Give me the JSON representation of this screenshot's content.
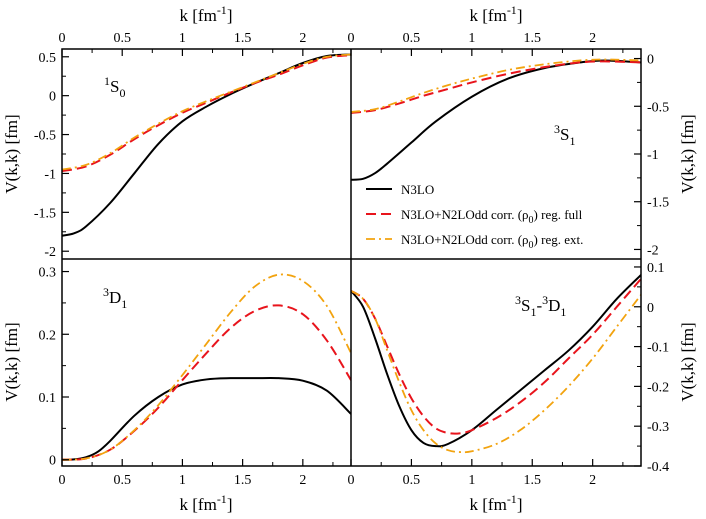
{
  "chart_data": {
    "type": "line",
    "x_axis": {
      "label": "k [fm",
      "label_sup": "-1",
      "label_close": "]",
      "ticks": [
        0,
        0.5,
        1,
        1.5,
        2
      ],
      "xlim": [
        0,
        2.4
      ]
    },
    "y_axis_label": "V(k,k) [fm]",
    "legend": {
      "placement": "right-center",
      "entries": [
        {
          "id": "n3lo",
          "text": "N3LO"
        },
        {
          "id": "full",
          "text": "N3LO+N2LOdd corr. (ρ",
          "sub": "0",
          "tail": ") reg. full"
        },
        {
          "id": "ext",
          "text": "N3LO+N2LOdd corr. (ρ",
          "sub": "0",
          "tail": ") reg. ext."
        }
      ]
    },
    "colors": {
      "n3lo": "#000000",
      "full": "#e8141c",
      "ext": "#f2a30f"
    },
    "panels": [
      {
        "id": "1S0",
        "position": "top-left",
        "label": {
          "pre": "1",
          "main": "S",
          "sub": "0",
          "sep": "",
          "pre2": "",
          "main2": "",
          "sub2": ""
        },
        "ylim": [
          -2.1,
          0.6
        ],
        "yticks": [
          0.5,
          0,
          -0.5,
          -1,
          -1.5,
          -2
        ],
        "series": [
          {
            "name": "N3LO",
            "x": [
              0,
              0.1,
              0.2,
              0.4,
              0.6,
              0.8,
              1.0,
              1.2,
              1.4,
              1.6,
              1.8,
              2.0,
              2.2,
              2.4
            ],
            "y": [
              -1.8,
              -1.77,
              -1.68,
              -1.38,
              -1.0,
              -0.62,
              -0.33,
              -0.14,
              0.02,
              0.16,
              0.29,
              0.42,
              0.51,
              0.53
            ]
          },
          {
            "name": "N3LO+N2LOdd corr. (ρ0) reg. full",
            "x": [
              0,
              0.2,
              0.4,
              0.6,
              0.8,
              1.0,
              1.2,
              1.4,
              1.6,
              1.8,
              2.0,
              2.2,
              2.4
            ],
            "y": [
              -0.97,
              -0.91,
              -0.76,
              -0.56,
              -0.38,
              -0.22,
              -0.09,
              0.04,
              0.16,
              0.27,
              0.39,
              0.49,
              0.52
            ]
          },
          {
            "name": "N3LO+N2LOdd corr. (ρ0) reg. ext.",
            "x": [
              0,
              0.2,
              0.4,
              0.6,
              0.8,
              1.0,
              1.2,
              1.4,
              1.6,
              1.8,
              2.0,
              2.2,
              2.4
            ],
            "y": [
              -0.95,
              -0.89,
              -0.74,
              -0.54,
              -0.36,
              -0.2,
              -0.07,
              0.05,
              0.17,
              0.29,
              0.41,
              0.5,
              0.53
            ]
          }
        ]
      },
      {
        "id": "3S1",
        "position": "top-right",
        "label": {
          "pre": "3",
          "main": "S",
          "sub": "1",
          "sep": "",
          "pre2": "",
          "main2": "",
          "sub2": ""
        },
        "ylim": [
          -2.1,
          0.1
        ],
        "yticks": [
          0,
          -0.5,
          -1,
          -1.5,
          -2
        ],
        "series": [
          {
            "name": "N3LO",
            "x": [
              0,
              0.1,
              0.2,
              0.3,
              0.5,
              0.7,
              1.0,
              1.3,
              1.6,
              1.9,
              2.1,
              2.4
            ],
            "y": [
              -1.27,
              -1.26,
              -1.2,
              -1.1,
              -0.88,
              -0.66,
              -0.4,
              -0.21,
              -0.1,
              -0.04,
              -0.02,
              -0.04
            ]
          },
          {
            "name": "N3LO+N2LOdd corr. (ρ0) reg. full",
            "x": [
              0,
              0.2,
              0.4,
              0.6,
              0.8,
              1.0,
              1.3,
              1.6,
              1.9,
              2.1,
              2.4
            ],
            "y": [
              -0.57,
              -0.54,
              -0.47,
              -0.39,
              -0.32,
              -0.25,
              -0.16,
              -0.09,
              -0.04,
              -0.03,
              -0.04
            ]
          },
          {
            "name": "N3LO+N2LOdd corr. (ρ0) reg. ext.",
            "x": [
              0,
              0.2,
              0.4,
              0.6,
              0.8,
              1.0,
              1.3,
              1.6,
              1.9,
              2.1,
              2.4
            ],
            "y": [
              -0.56,
              -0.53,
              -0.45,
              -0.36,
              -0.28,
              -0.21,
              -0.12,
              -0.06,
              -0.02,
              -0.01,
              -0.02
            ]
          }
        ]
      },
      {
        "id": "3D1",
        "position": "bottom-left",
        "label": {
          "pre": "3",
          "main": "D",
          "sub": "1",
          "sep": "",
          "pre2": "",
          "main2": "",
          "sub2": ""
        },
        "ylim": [
          -0.01,
          0.32
        ],
        "yticks": [
          0,
          0.1,
          0.2,
          0.3
        ],
        "series": [
          {
            "name": "N3LO",
            "x": [
              0,
              0.1,
              0.2,
              0.3,
              0.4,
              0.6,
              0.8,
              1.0,
              1.2,
              1.4,
              1.6,
              1.8,
              2.0,
              2.2,
              2.4
            ],
            "y": [
              0,
              0.0005,
              0.004,
              0.013,
              0.03,
              0.07,
              0.1,
              0.12,
              0.128,
              0.13,
              0.13,
              0.13,
              0.126,
              0.11,
              0.073
            ]
          },
          {
            "name": "N3LO+N2LOdd corr. (ρ0) reg. full",
            "x": [
              0,
              0.2,
              0.4,
              0.6,
              0.8,
              1.0,
              1.2,
              1.4,
              1.6,
              1.8,
              2.0,
              2.2,
              2.4
            ],
            "y": [
              0,
              0.002,
              0.016,
              0.046,
              0.083,
              0.127,
              0.17,
              0.21,
              0.237,
              0.246,
              0.232,
              0.19,
              0.127
            ]
          },
          {
            "name": "N3LO+N2LOdd corr. (ρ0) reg. ext.",
            "x": [
              0,
              0.2,
              0.4,
              0.6,
              0.8,
              1.0,
              1.2,
              1.4,
              1.6,
              1.8,
              2.0,
              2.2,
              2.4
            ],
            "y": [
              0,
              0.002,
              0.016,
              0.047,
              0.087,
              0.135,
              0.185,
              0.235,
              0.276,
              0.295,
              0.285,
              0.245,
              0.17
            ]
          }
        ]
      },
      {
        "id": "3S1-3D1",
        "position": "bottom-right",
        "label": {
          "pre": "3",
          "main": "S",
          "sub": "1",
          "sep": "-",
          "pre2": "3",
          "main2": "D",
          "sub2": "1"
        },
        "ylim": [
          -0.4,
          0.12
        ],
        "yticks": [
          0.1,
          0,
          -0.1,
          -0.2,
          -0.3,
          -0.4
        ],
        "series": [
          {
            "name": "N3LO",
            "x": [
              0,
              0.1,
              0.2,
              0.3,
              0.4,
              0.5,
              0.6,
              0.7,
              0.8,
              1.0,
              1.2,
              1.4,
              1.6,
              1.8,
              2.0,
              2.2,
              2.4
            ],
            "y": [
              0.04,
              0.0,
              -0.08,
              -0.17,
              -0.25,
              -0.31,
              -0.342,
              -0.35,
              -0.345,
              -0.31,
              -0.26,
              -0.21,
              -0.16,
              -0.11,
              -0.05,
              0.02,
              0.08
            ]
          },
          {
            "name": "N3LO+N2LOdd corr. (ρ0) reg. full",
            "x": [
              0,
              0.1,
              0.2,
              0.3,
              0.4,
              0.5,
              0.6,
              0.7,
              0.8,
              0.9,
              1.0,
              1.2,
              1.4,
              1.6,
              1.8,
              2.0,
              2.2,
              2.4
            ],
            "y": [
              0.04,
              0.02,
              -0.03,
              -0.1,
              -0.17,
              -0.23,
              -0.275,
              -0.305,
              -0.317,
              -0.318,
              -0.31,
              -0.28,
              -0.24,
              -0.19,
              -0.13,
              -0.07,
              0.0,
              0.07
            ]
          },
          {
            "name": "N3LO+N2LOdd corr. (ρ0) reg. ext.",
            "x": [
              0,
              0.1,
              0.2,
              0.3,
              0.4,
              0.5,
              0.6,
              0.7,
              0.8,
              0.9,
              1.0,
              1.2,
              1.4,
              1.6,
              1.8,
              2.0,
              2.2,
              2.4
            ],
            "y": [
              0.04,
              0.02,
              -0.03,
              -0.11,
              -0.19,
              -0.26,
              -0.31,
              -0.343,
              -0.36,
              -0.365,
              -0.363,
              -0.345,
              -0.31,
              -0.26,
              -0.2,
              -0.13,
              -0.05,
              0.03
            ]
          }
        ]
      }
    ]
  }
}
